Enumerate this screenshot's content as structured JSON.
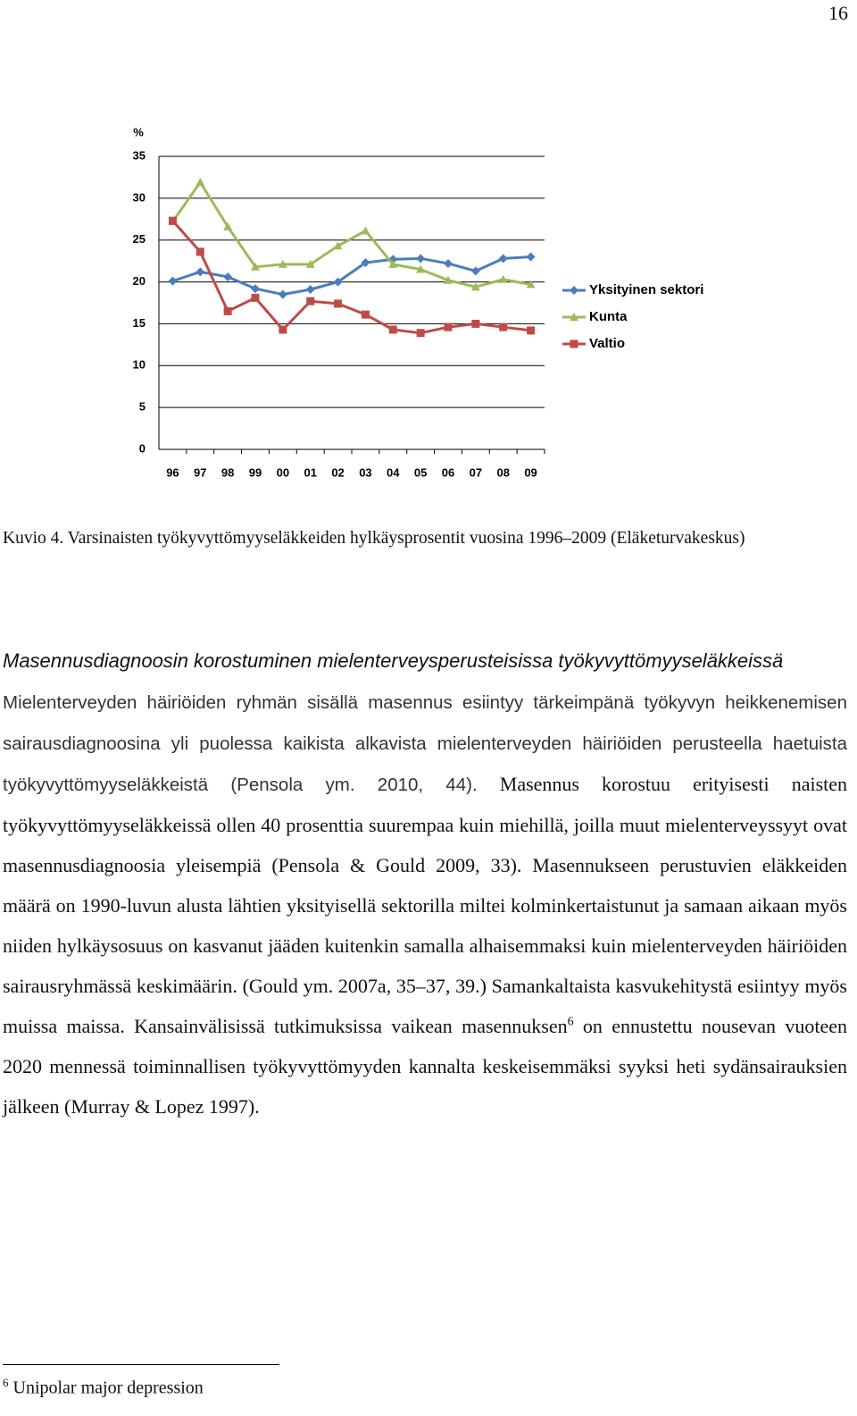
{
  "page_number": "16",
  "chart_data": {
    "type": "line",
    "y_label": "%",
    "categories": [
      "96",
      "97",
      "98",
      "99",
      "00",
      "01",
      "02",
      "03",
      "04",
      "05",
      "06",
      "07",
      "08",
      "09"
    ],
    "series": [
      {
        "name": "Yksityinen sektori",
        "color": "#4a7ebb",
        "marker": "diamond",
        "values": [
          20.1,
          21.2,
          20.6,
          19.2,
          18.5,
          19.1,
          20.0,
          22.3,
          22.7,
          22.8,
          22.2,
          21.3,
          22.8,
          23.0
        ]
      },
      {
        "name": "Kunta",
        "color": "#9bbb59",
        "marker": "triangle",
        "values": [
          27.2,
          31.9,
          26.6,
          21.8,
          22.1,
          22.1,
          24.3,
          26.1,
          22.1,
          21.5,
          20.2,
          19.4,
          20.3,
          19.7
        ]
      },
      {
        "name": "Valtio",
        "color": "#be4b48",
        "marker": "square",
        "values": [
          27.3,
          23.6,
          16.5,
          18.1,
          14.3,
          17.7,
          17.4,
          16.1,
          14.3,
          13.9,
          14.6,
          15.0,
          14.6,
          14.2
        ]
      }
    ],
    "ylim": [
      0,
      35
    ],
    "yticks": [
      0,
      5,
      10,
      15,
      20,
      25,
      30,
      35
    ],
    "grid": true,
    "legend": "right"
  },
  "caption": "Kuvio 4. Varsinaisten työkyvyttömyyseläkkeiden hylkäysprosentit vuosina 1996–2009 (Eläketurvakeskus)",
  "heading": "Masennusdiagnoosin korostuminen mielenterveysperusteisissa työkyvyttömyyseläkkeissä",
  "paragraph": {
    "part1": "Mielenterveyden häiriöiden ryhmän sisällä masennus esiintyy tärkeimpänä työkyvyn heikkenemisen sairausdiagnoosina yli puolessa kaikista alkavista mielenterveyden häiriöiden perusteella haetuista työkyvyttömyyseläkkeistä (Pensola ym. 2010, 44).",
    "part2": "Masennus korostuu erityisesti naisten työkyvyttömyyseläkkeissä ollen 40 prosenttia suurempaa kuin miehillä, joilla muut mielenterveyssyyt ovat masennusdiagnoosia yleisempiä (Pensola & Gould 2009, 33). Masennukseen perustuvien eläkkeiden määrä on 1990-luvun alusta lähtien yksityisellä sektorilla miltei kolminkertaistunut ja samaan aikaan myös niiden hylkäysosuus on kasvanut jääden kuitenkin samalla alhaisemmaksi kuin mielenterveyden häiriöiden sairausryhmässä keskimäärin. (Gould ym. 2007a, 35–37, 39.) Samankaltaista kasvukehitystä esiintyy myös muissa maissa. Kansainvälisissä tutkimuksissa vaikean masennuksen",
    "footnote_mark": "6",
    "part3": "on ennustettu nousevan vuoteen 2020 mennessä toiminnallisen työkyvyttömyyden kannalta keskeisemmäksi syyksi heti sydänsairauksien jälkeen (Murray & Lopez 1997)."
  },
  "footnote": {
    "mark": "6",
    "text": "Unipolar major depression"
  }
}
